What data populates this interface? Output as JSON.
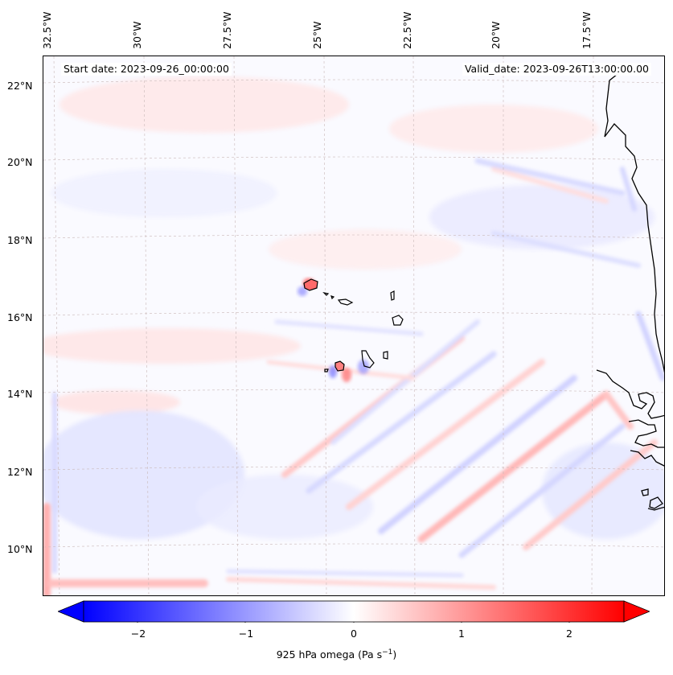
{
  "map": {
    "start_date_text": "Start date: 2023-09-26_00:00:00",
    "valid_date_text": "Valid_date: 2023-09-26T13:00:00.00",
    "lon_ticks": [
      "32.5°W",
      "30°W",
      "27.5°W",
      "25°W",
      "22.5°W",
      "20°W",
      "17.5°W"
    ],
    "lat_ticks": [
      "22°N",
      "20°N",
      "18°N",
      "16°N",
      "14°N",
      "12°N",
      "10°N"
    ],
    "field": "925 hPa omega",
    "colors": {
      "negative": "#0000ff",
      "zero": "#ffffff",
      "positive": "#ff0000",
      "coastline": "#000000",
      "gridline": "#c8b4b4"
    }
  },
  "colorbar": {
    "ticks": [
      "−2",
      "−1",
      "0",
      "1",
      "2"
    ],
    "tick_values": [
      -2,
      -1,
      0,
      1,
      2
    ],
    "range": [
      -2.5,
      2.5
    ],
    "label_main": "925 hPa omega (Pa s",
    "label_sup": "−1",
    "label_end": ")"
  }
}
